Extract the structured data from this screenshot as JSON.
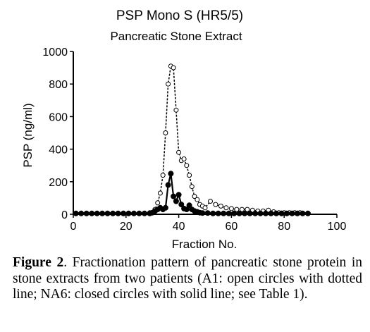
{
  "chart_data": {
    "type": "line",
    "title": "PSP Mono S (HR5/5)",
    "subtitle": "Pancreatic Stone Extract",
    "xlabel": "Fraction No.",
    "ylabel": "PSP (ng/ml)",
    "xlim": [
      0,
      100
    ],
    "ylim": [
      0,
      1000
    ],
    "xticks": [
      0,
      20,
      40,
      60,
      80,
      100
    ],
    "yticks": [
      0,
      200,
      400,
      600,
      800,
      1000
    ],
    "grid": false,
    "series": [
      {
        "style": "open-circles-dotted",
        "x": [
          1,
          3,
          5,
          7,
          9,
          11,
          13,
          15,
          17,
          19,
          21,
          23,
          25,
          27,
          29,
          31,
          32,
          33,
          34,
          35,
          36,
          37,
          38,
          39,
          40,
          41,
          42,
          43,
          44,
          45,
          46,
          47,
          48,
          49,
          50,
          52,
          54,
          56,
          58,
          60,
          62,
          64,
          66,
          68,
          70,
          72,
          74,
          76,
          78,
          80,
          82,
          84,
          86
        ],
        "y": [
          5,
          5,
          5,
          5,
          5,
          5,
          5,
          5,
          5,
          5,
          5,
          5,
          5,
          5,
          10,
          30,
          70,
          130,
          240,
          500,
          800,
          910,
          900,
          640,
          380,
          330,
          340,
          300,
          240,
          170,
          110,
          90,
          60,
          50,
          40,
          80,
          60,
          50,
          40,
          35,
          30,
          30,
          30,
          25,
          20,
          20,
          25,
          15,
          10,
          10,
          10,
          10,
          10
        ]
      },
      {
        "style": "filled-circles-solid",
        "x": [
          1,
          3,
          5,
          7,
          9,
          11,
          13,
          15,
          17,
          19,
          21,
          23,
          25,
          27,
          29,
          30,
          31,
          32,
          33,
          34,
          35,
          36,
          37,
          38,
          39,
          40,
          41,
          42,
          43,
          44,
          45,
          46,
          47,
          48,
          49,
          51,
          53,
          55,
          57,
          59,
          61,
          63,
          65,
          67,
          69,
          71,
          73,
          75,
          77,
          79,
          81,
          83,
          85,
          87,
          89
        ],
        "y": [
          5,
          5,
          5,
          5,
          5,
          5,
          5,
          5,
          5,
          5,
          5,
          5,
          5,
          5,
          5,
          10,
          20,
          30,
          40,
          30,
          40,
          180,
          250,
          110,
          80,
          120,
          60,
          35,
          30,
          55,
          30,
          20,
          15,
          10,
          8,
          8,
          5,
          5,
          5,
          5,
          5,
          5,
          5,
          5,
          5,
          5,
          5,
          5,
          5,
          5,
          5,
          5,
          5,
          5,
          5
        ]
      }
    ]
  },
  "caption": {
    "label": "Figure 2",
    "text": ". Fractionation pattern of pancreatic stone protein in stone extracts from two patients (A1: open circles with dotted line; NA6: closed circles with solid line; see Table 1)."
  }
}
